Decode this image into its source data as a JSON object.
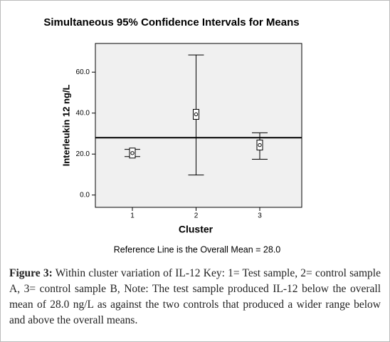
{
  "chart_data": {
    "type": "errorbar",
    "title": "Simultaneous 95% Confidence Intervals for Means",
    "x_label": "Cluster",
    "y_label": "Interleukin 12 ng/L",
    "categories": [
      "1",
      "2",
      "3"
    ],
    "mean": [
      20.5,
      39.4,
      24.4
    ],
    "lower": [
      18.8,
      9.8,
      17.5
    ],
    "upper": [
      22.3,
      68.4,
      30.4
    ],
    "reference_line": 28,
    "reference_note": "Reference Line is the Overall Mean = 28.0",
    "ylim": [
      -6,
      74
    ],
    "yticks": [
      {
        "value": 0,
        "label": "0.0"
      },
      {
        "value": 20,
        "label": "20.0"
      },
      {
        "value": 40,
        "label": "40.0"
      },
      {
        "value": 60,
        "label": "60.0"
      }
    ],
    "plot_background": "#f0f0f0"
  },
  "caption": {
    "label": "Figure 3:",
    "text": "Within cluster variation of IL-12 Key: 1= Test sample, 2= control sample A, 3= control sample B, Note: The test sample produced IL-12 below the overall mean of 28.0 ng/L as against the two controls that produced a wider range below and above the overall means."
  }
}
